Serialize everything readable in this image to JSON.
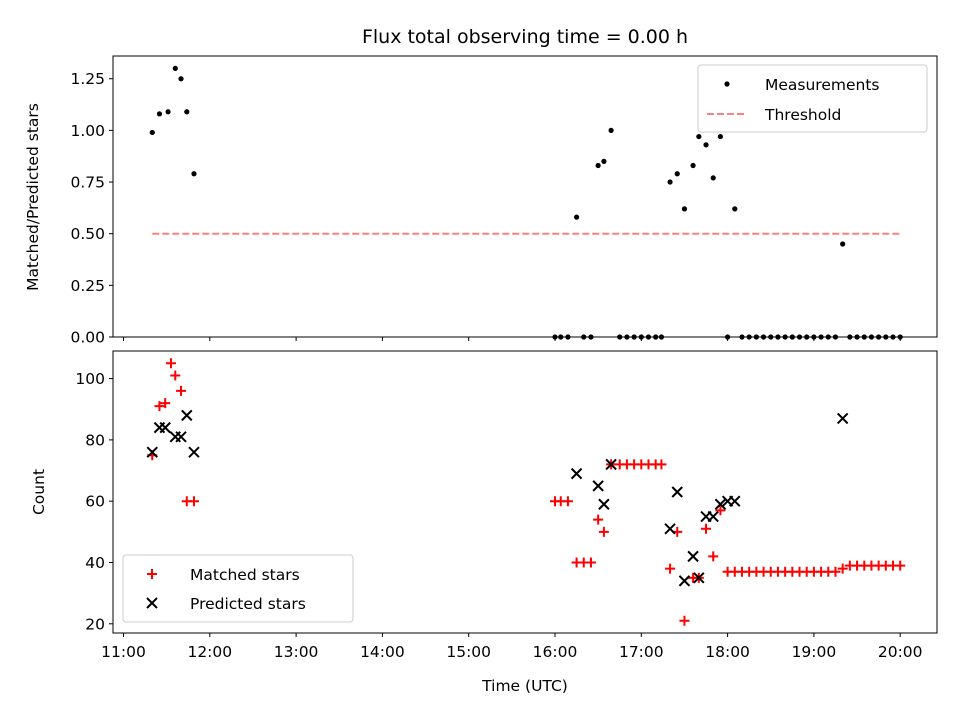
{
  "chart_data": [
    {
      "type": "scatter",
      "title": "Flux total observing time = 0.00 h",
      "ylabel": "Matched/Predicted stars",
      "xlabel": "",
      "ylim": [
        0,
        1.36
      ],
      "yticks": [
        "0.00",
        "0.25",
        "0.50",
        "0.75",
        "1.00",
        "1.25"
      ],
      "legend_position": "upper-right",
      "series": [
        {
          "name": "Measurements",
          "color": "#000000",
          "marker": "dot",
          "x": [
            "11:20",
            "11:25",
            "11:31",
            "11:36",
            "11:40",
            "11:44",
            "11:49",
            "16:00",
            "16:04",
            "16:09",
            "16:15",
            "16:20",
            "16:25",
            "16:30",
            "16:34",
            "16:39",
            "16:45",
            "16:50",
            "16:55",
            "17:00",
            "17:05",
            "17:10",
            "17:14",
            "17:20",
            "17:25",
            "17:30",
            "17:36",
            "17:40",
            "17:45",
            "17:50",
            "17:55",
            "18:00",
            "18:05",
            "18:10",
            "18:15",
            "18:20",
            "18:25",
            "18:30",
            "18:35",
            "18:40",
            "18:45",
            "18:50",
            "18:55",
            "19:00",
            "19:05",
            "19:10",
            "19:15",
            "19:20",
            "19:25",
            "19:30",
            "19:35",
            "19:40",
            "19:45",
            "19:50",
            "19:55",
            "20:00"
          ],
          "y": [
            0.99,
            1.08,
            1.09,
            1.3,
            1.25,
            1.09,
            0.79,
            0.0,
            0.0,
            0.0,
            0.58,
            0.0,
            0.0,
            0.83,
            0.85,
            1.0,
            0.0,
            0.0,
            0.0,
            0.0,
            0.0,
            0.0,
            0.0,
            0.75,
            0.79,
            0.62,
            0.83,
            0.97,
            0.93,
            0.77,
            0.97,
            0.0,
            0.62,
            0.0,
            0.0,
            0.0,
            0.0,
            0.0,
            0.0,
            0.0,
            0.0,
            0.0,
            0.0,
            0.0,
            0.0,
            0.0,
            0.0,
            0.45,
            0.0,
            0.0,
            0.0,
            0.0,
            0.0,
            0.0,
            0.0,
            0.0
          ]
        },
        {
          "name": "Threshold",
          "color": "#ff8080",
          "style": "dashed-line",
          "x": [
            "11:20",
            "20:00"
          ],
          "y": [
            0.5,
            0.5
          ]
        }
      ]
    },
    {
      "type": "scatter",
      "title": "",
      "ylabel": "Count",
      "xlabel": "Time (UTC)",
      "ylim": [
        17,
        109
      ],
      "yticks": [
        "20",
        "40",
        "60",
        "80",
        "100"
      ],
      "xticks": [
        "11:00",
        "12:00",
        "13:00",
        "14:00",
        "15:00",
        "16:00",
        "17:00",
        "18:00",
        "19:00",
        "20:00"
      ],
      "legend_position": "lower-left",
      "series": [
        {
          "name": "Matched stars",
          "color": "#ff0000",
          "marker": "plus",
          "x": [
            "11:20",
            "11:25",
            "11:29",
            "11:33",
            "11:36",
            "11:40",
            "11:44",
            "11:49",
            "16:00",
            "16:04",
            "16:09",
            "16:15",
            "16:20",
            "16:25",
            "16:30",
            "16:34",
            "16:39",
            "16:45",
            "16:50",
            "16:55",
            "17:00",
            "17:05",
            "17:10",
            "17:14",
            "17:20",
            "17:25",
            "17:30",
            "17:36",
            "17:40",
            "17:45",
            "17:50",
            "17:55",
            "18:00",
            "18:05",
            "18:10",
            "18:15",
            "18:20",
            "18:25",
            "18:30",
            "18:35",
            "18:40",
            "18:45",
            "18:50",
            "18:55",
            "19:00",
            "19:05",
            "19:10",
            "19:15",
            "19:20",
            "19:25",
            "19:30",
            "19:35",
            "19:40",
            "19:45",
            "19:50",
            "19:55",
            "20:00"
          ],
          "y": [
            75,
            91,
            92,
            105,
            101,
            96,
            60,
            60,
            60,
            60,
            60,
            40,
            40,
            40,
            54,
            50,
            72,
            72,
            72,
            72,
            72,
            72,
            72,
            72,
            38,
            50,
            21,
            35,
            35,
            51,
            42,
            57,
            37,
            37,
            37,
            37,
            37,
            37,
            37,
            37,
            37,
            37,
            37,
            37,
            37,
            37,
            37,
            37,
            38,
            39,
            39,
            39,
            39,
            39,
            39,
            39,
            39
          ]
        },
        {
          "name": "Predicted stars",
          "color": "#000000",
          "marker": "x",
          "x": [
            "11:20",
            "11:25",
            "11:29",
            "11:36",
            "11:40",
            "11:44",
            "11:49",
            "16:15",
            "16:30",
            "16:34",
            "16:39",
            "17:20",
            "17:25",
            "17:30",
            "17:36",
            "17:40",
            "17:45",
            "17:50",
            "17:55",
            "18:00",
            "18:05",
            "19:20"
          ],
          "y": [
            76,
            84,
            84,
            81,
            81,
            88,
            76,
            69,
            65,
            59,
            72,
            51,
            63,
            34,
            42,
            35,
            55,
            55,
            59,
            60,
            60,
            87
          ]
        }
      ]
    }
  ]
}
